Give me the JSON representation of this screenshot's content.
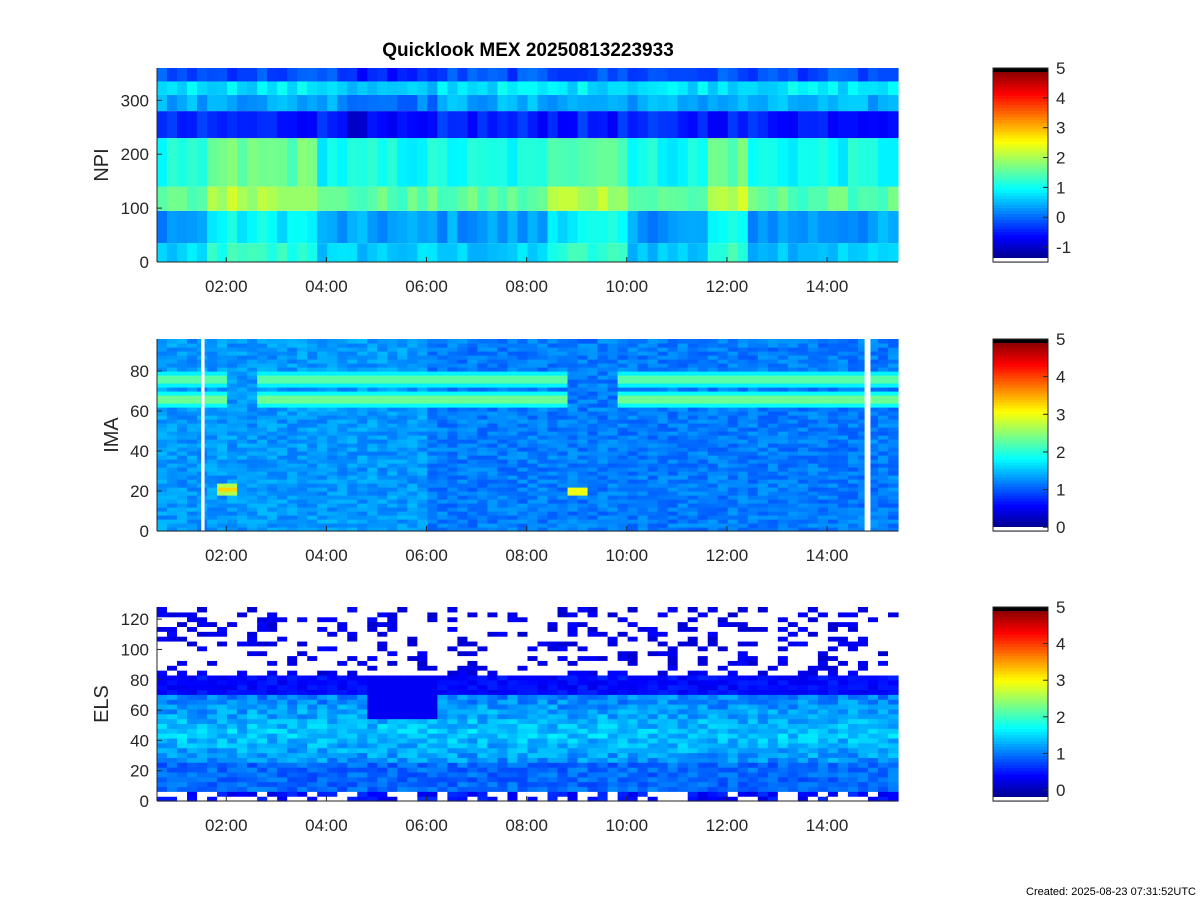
{
  "chart_data": [
    {
      "type": "heatmap",
      "title": "Quicklook MEX 20250813223933",
      "ylabel": "NPI",
      "xlim": [
        "00:37",
        "15:25"
      ],
      "xticks": [
        "02:00",
        "04:00",
        "06:00",
        "08:00",
        "10:00",
        "12:00",
        "14:00"
      ],
      "ylim": [
        0,
        360
      ],
      "yticks": [
        0,
        100,
        200,
        300
      ],
      "colorbar": {
        "min": -1.5,
        "max": 5,
        "ticks": [
          -1,
          0,
          1,
          2,
          3,
          4,
          5
        ],
        "colormap": "jet"
      },
      "bands": [
        {
          "y": [
            0,
            35
          ],
          "level": 0.6
        },
        {
          "y": [
            35,
            95
          ],
          "level": 0.3
        },
        {
          "y": [
            95,
            140
          ],
          "level": 1.5
        },
        {
          "y": [
            140,
            230
          ],
          "level": 1.0
        },
        {
          "y": [
            230,
            280
          ],
          "level": -0.5
        },
        {
          "y": [
            280,
            310
          ],
          "level": 0.4
        },
        {
          "y": [
            310,
            335
          ],
          "level": 0.8
        },
        {
          "y": [
            335,
            360
          ],
          "level": -0.2
        }
      ]
    },
    {
      "type": "heatmap",
      "title": "",
      "ylabel": "IMA",
      "xlim": [
        "00:37",
        "15:25"
      ],
      "xticks": [
        "02:00",
        "04:00",
        "06:00",
        "08:00",
        "10:00",
        "12:00",
        "14:00"
      ],
      "ylim": [
        0,
        96
      ],
      "yticks": [
        0,
        20,
        40,
        60,
        80
      ],
      "colorbar": {
        "min": -0.1,
        "max": 5,
        "ticks": [
          0,
          1,
          2,
          3,
          4,
          5
        ],
        "colormap": "jet"
      },
      "background_level": 1.3,
      "features": [
        {
          "name": "ion-band-lower",
          "y": 66,
          "level": 2.6
        },
        {
          "name": "ion-band-upper",
          "y": 76,
          "level": 2.5
        },
        {
          "name": "low-energy-spot-1",
          "x": "02:00",
          "y": 21,
          "level": 3.3
        },
        {
          "name": "low-energy-spot-2",
          "x": "09:00",
          "y": 20,
          "level": 3.3
        }
      ],
      "data_gaps": [
        [
          "01:30",
          "01:34"
        ],
        [
          "14:45",
          "14:52"
        ]
      ]
    },
    {
      "type": "heatmap",
      "title": "",
      "ylabel": "ELS",
      "xlim": [
        "00:37",
        "15:25"
      ],
      "xticks": [
        "02:00",
        "04:00",
        "06:00",
        "08:00",
        "10:00",
        "12:00",
        "14:00"
      ],
      "ylim": [
        0,
        128
      ],
      "yticks": [
        0,
        20,
        40,
        60,
        80,
        100,
        120
      ],
      "colorbar": {
        "min": -0.3,
        "max": 5,
        "ticks": [
          0,
          1,
          2,
          3,
          4,
          5
        ],
        "colormap": "jet"
      },
      "features": [
        {
          "name": "core-electron-band",
          "y": [
            25,
            70
          ],
          "level": 1.6
        },
        {
          "name": "mid-band",
          "y": [
            10,
            25
          ],
          "level": 1.0
        },
        {
          "name": "upper-sparse-noise",
          "y": [
            80,
            128
          ],
          "level": 0.1
        }
      ]
    }
  ],
  "footer": {
    "created": "Created: 2025-08-23 07:31:52UTC"
  }
}
